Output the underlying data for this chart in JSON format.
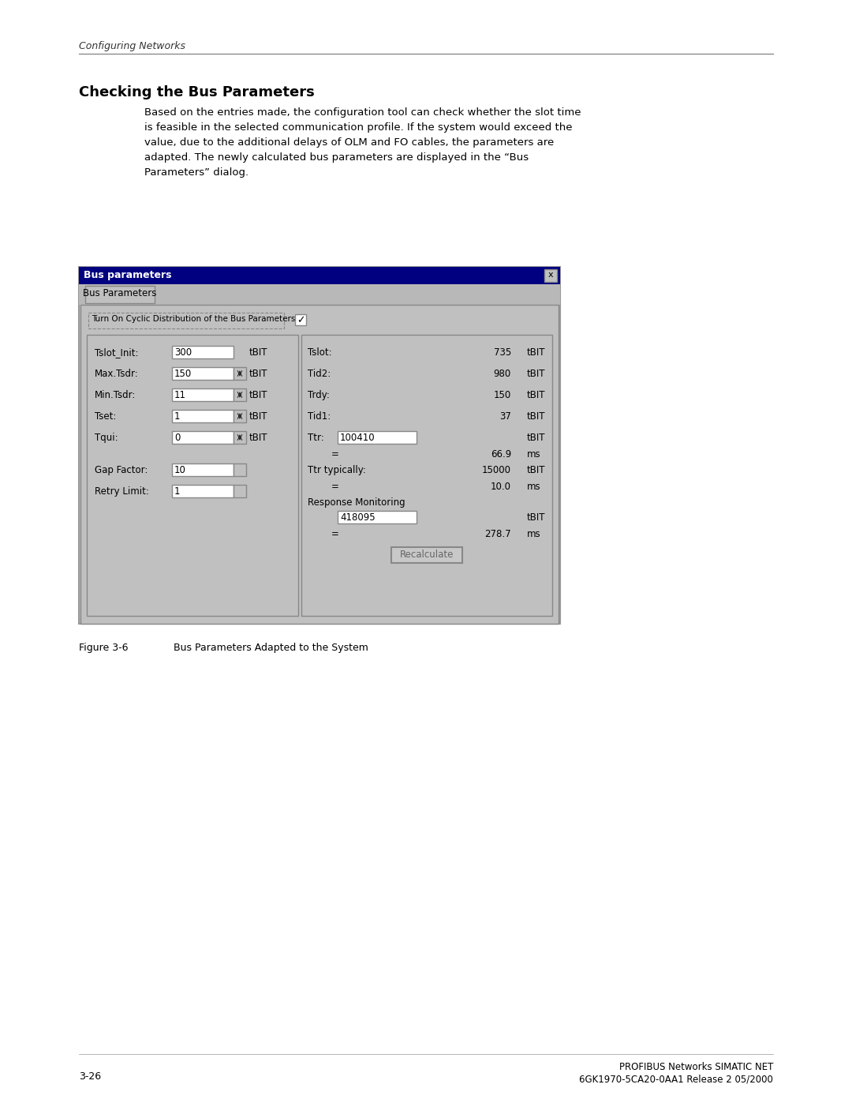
{
  "page_bg": "#ffffff",
  "header_text": "Configuring Networks",
  "section_title": "Checking the Bus Parameters",
  "body_lines": [
    "Based on the entries made, the configuration tool can check whether the slot time",
    "is feasible in the selected communication profile. If the system would exceed the",
    "value, due to the additional delays of OLM and FO cables, the parameters are",
    "adapted. The newly calculated bus parameters are displayed in the “Bus",
    "Parameters” dialog."
  ],
  "figure_caption_label": "Figure 3-6",
  "figure_caption_text": "Bus Parameters Adapted to the System",
  "page_number": "3-26",
  "footer_right_line1": "PROFIBUS Networks SIMATIC NET",
  "footer_right_line2": "6GK1970-5CA20-0AA1 Release 2 05/2000",
  "dialog_title": "Bus parameters",
  "dialog_title_bg": "#000080",
  "dialog_title_fg": "#ffffff",
  "dialog_bg": "#c0c0c0",
  "dialog_inner_bg": "#c0c0c0",
  "tab_text": "Bus Parameters",
  "checkbox_label": "Turn On Cyclic Distribution of the Bus Parameters",
  "left_fields": [
    {
      "label": "Tslot_Init:",
      "value": "300",
      "unit": "tBIT",
      "has_spinner": false
    },
    {
      "label": "Max.Tsdr:",
      "value": "150",
      "unit": "tBIT",
      "has_spinner": true
    },
    {
      "label": "Min.Tsdr:",
      "value": "11",
      "unit": "tBIT",
      "has_spinner": true
    },
    {
      "label": "Tset:",
      "value": "1",
      "unit": "tBIT",
      "has_spinner": true
    },
    {
      "label": "Tqui:",
      "value": "0",
      "unit": "tBIT",
      "has_spinner": true
    }
  ],
  "left_fields2": [
    {
      "label": "Gap Factor:",
      "value": "10",
      "has_spinner": true
    },
    {
      "label": "Retry Limit:",
      "value": "1",
      "has_spinner": true
    }
  ],
  "right_fields": [
    {
      "label": "Tslot:",
      "value": "735",
      "unit": "tBIT"
    },
    {
      "label": "Tid2:",
      "value": "980",
      "unit": "tBIT"
    },
    {
      "label": "Trdy:",
      "value": "150",
      "unit": "tBIT"
    },
    {
      "label": "Tid1:",
      "value": "37",
      "unit": "tBIT"
    }
  ],
  "ttr_label": "Ttr:",
  "ttr_value": "100410",
  "ttr_unit": "tBIT",
  "ttr_eq": "=",
  "ttr_ms_value": "66.9",
  "ttr_ms_unit": "ms",
  "ttr_typ_label": "Ttr typically:",
  "ttr_typ_value": "15000",
  "ttr_typ_unit": "tBIT",
  "ttr_typ_eq": "=",
  "ttr_typ_ms_value": "10.0",
  "ttr_typ_ms_unit": "ms",
  "resp_label": "Response Monitoring",
  "resp_value": "418095",
  "resp_unit": "tBIT",
  "resp_eq": "=",
  "resp_ms_value": "278.7",
  "resp_ms_unit": "ms",
  "recalc_btn": "Recalculate"
}
